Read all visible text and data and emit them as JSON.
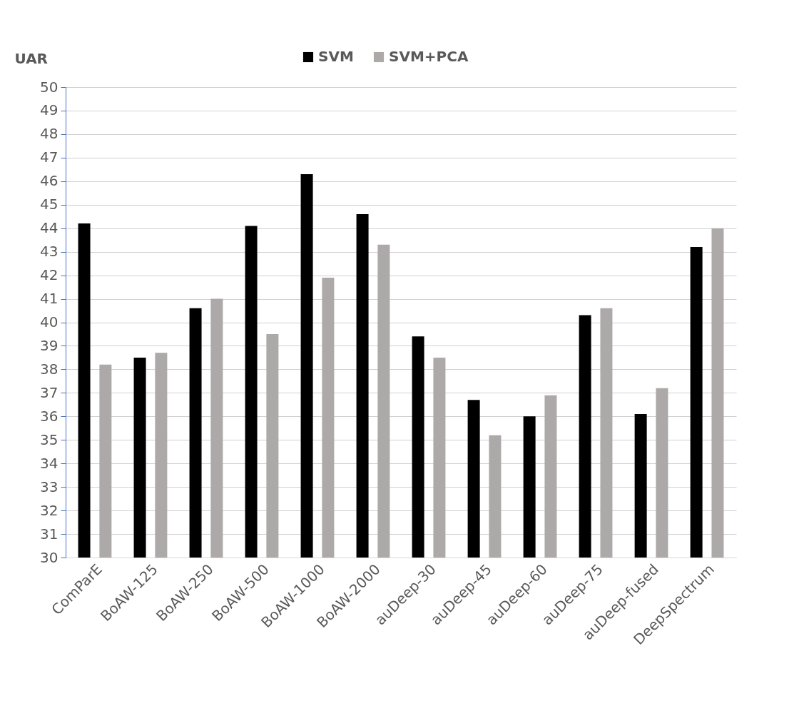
{
  "chart_data": {
    "type": "bar",
    "ylabel": "UAR",
    "categories": [
      "ComParE",
      "BoAW-125",
      "BoAW-250",
      "BoAW-500",
      "BoAW-1000",
      "BoAW-2000",
      "auDeep-30",
      "auDeep-45",
      "auDeep-60",
      "auDeep-75",
      "auDeep-fused",
      "DeepSpectrum"
    ],
    "series": [
      {
        "name": "SVM",
        "color": "#000000",
        "values": [
          44.2,
          38.5,
          40.6,
          44.1,
          46.3,
          44.6,
          39.4,
          36.7,
          36.0,
          40.3,
          36.1,
          43.2
        ]
      },
      {
        "name": "SVM+PCA",
        "color": "#ada9a9",
        "values": [
          38.2,
          38.7,
          41.0,
          39.5,
          41.9,
          43.3,
          38.5,
          35.2,
          36.9,
          40.6,
          37.2,
          44.0
        ]
      }
    ],
    "ylim": [
      30,
      50
    ],
    "yticks": [
      30,
      31,
      32,
      33,
      34,
      35,
      36,
      37,
      38,
      39,
      40,
      41,
      42,
      43,
      44,
      45,
      46,
      47,
      48,
      49,
      50
    ],
    "grid": "y",
    "legend": "top"
  }
}
